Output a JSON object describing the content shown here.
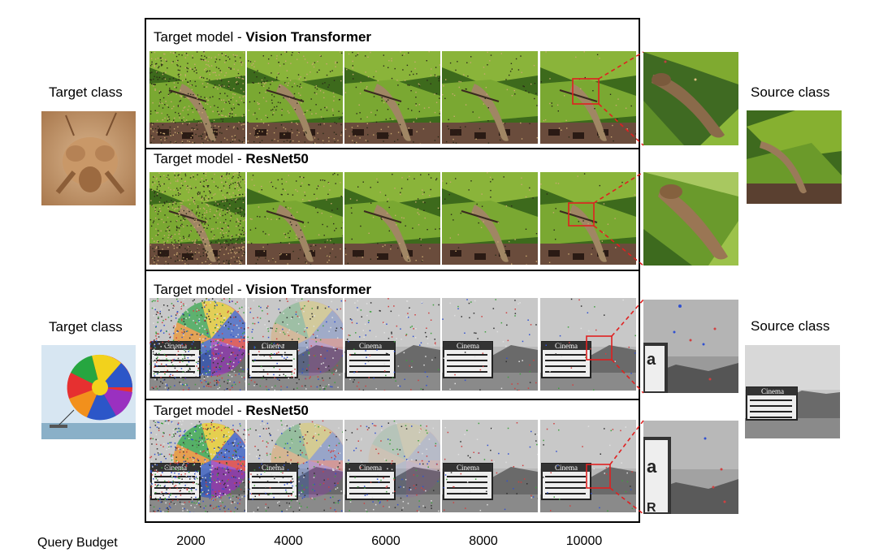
{
  "left_labels": {
    "target_class_1": "Target class",
    "target_class_2": "Target class"
  },
  "right_labels": {
    "source_class_1": "Source class",
    "source_class_2": "Source class"
  },
  "panels": [
    {
      "prefix": "Target model - ",
      "model": "Vision Transformer",
      "scene": "lizard"
    },
    {
      "prefix": "Target model - ",
      "model": "ResNet50",
      "scene": "lizard"
    },
    {
      "prefix": "Target model - ",
      "model": "Vision Transformer",
      "scene": "cinema"
    },
    {
      "prefix": "Target model - ",
      "model": "ResNet50",
      "scene": "cinema"
    }
  ],
  "query_budget_label": "Query Budget",
  "budgets": [
    "2000",
    "4000",
    "6000",
    "8000",
    "10000"
  ],
  "colors": {
    "frame": "#000000",
    "zoom_box": "#e02020",
    "zoom_line": "#e02020"
  }
}
